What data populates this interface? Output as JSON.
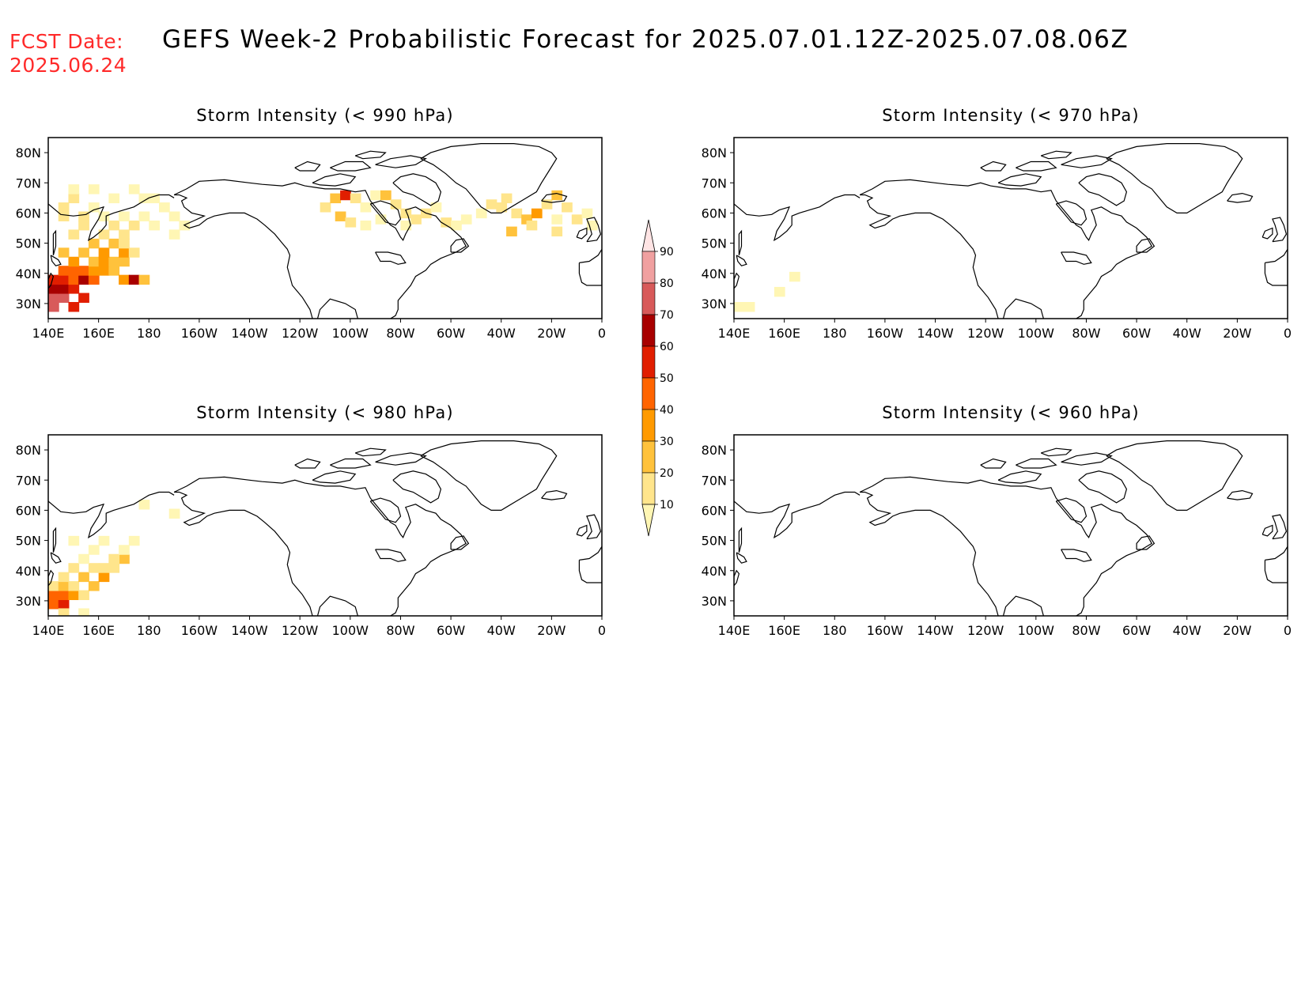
{
  "header": {
    "fcst_label": "FCST Date:",
    "fcst_date": "2025.06.24",
    "title": "GEFS Week-2 Probabilistic Forecast for 2025.07.01.12Z-2025.07.08.06Z"
  },
  "axes": {
    "lat_ticks": [
      "80N",
      "70N",
      "60N",
      "50N",
      "40N",
      "30N"
    ],
    "lon_ticks": [
      "140E",
      "160E",
      "180",
      "160W",
      "140W",
      "120W",
      "100W",
      "80W",
      "60W",
      "40W",
      "20W",
      "0"
    ]
  },
  "panels": [
    {
      "title": "Storm Intensity (< 990 hPa)"
    },
    {
      "title": "Storm Intensity (< 970 hPa)"
    },
    {
      "title": "Storm Intensity (< 980 hPa)"
    },
    {
      "title": "Storm Intensity (< 960 hPa)"
    }
  ],
  "colorbar": {
    "levels": [
      "10",
      "20",
      "30",
      "40",
      "50",
      "60",
      "70",
      "80",
      "90"
    ],
    "colors": [
      "#fff6b4",
      "#ffe58c",
      "#ffc23c",
      "#ff9a00",
      "#ff6400",
      "#e11e00",
      "#a80000",
      "#d85a5a",
      "#f0a0a0",
      "#ffe4e4"
    ]
  },
  "chart_data": {
    "type": "heatmap",
    "variable": "probability (%)",
    "lon_range": [
      140,
      360
    ],
    "lat_range": [
      25,
      85
    ],
    "panels": [
      {
        "threshold_hPa": 990,
        "cells": [
          [
            142,
            29,
            80
          ],
          [
            142,
            32,
            80
          ],
          [
            146,
            32,
            80
          ],
          [
            150,
            29,
            60
          ],
          [
            142,
            35,
            70
          ],
          [
            146,
            35,
            70
          ],
          [
            150,
            35,
            60
          ],
          [
            154,
            32,
            60
          ],
          [
            142,
            38,
            60
          ],
          [
            146,
            38,
            60
          ],
          [
            150,
            38,
            50
          ],
          [
            154,
            38,
            70
          ],
          [
            158,
            38,
            50
          ],
          [
            146,
            41,
            50
          ],
          [
            150,
            41,
            50
          ],
          [
            154,
            41,
            50
          ],
          [
            158,
            41,
            40
          ],
          [
            162,
            41,
            40
          ],
          [
            166,
            41,
            30
          ],
          [
            170,
            38,
            40
          ],
          [
            174,
            38,
            70
          ],
          [
            178,
            38,
            30
          ],
          [
            150,
            44,
            40
          ],
          [
            158,
            44,
            30
          ],
          [
            162,
            44,
            40
          ],
          [
            166,
            44,
            30
          ],
          [
            170,
            44,
            30
          ],
          [
            146,
            47,
            30
          ],
          [
            154,
            47,
            30
          ],
          [
            162,
            47,
            40
          ],
          [
            170,
            47,
            40
          ],
          [
            174,
            47,
            20
          ],
          [
            158,
            50,
            30
          ],
          [
            166,
            50,
            30
          ],
          [
            170,
            50,
            20
          ],
          [
            150,
            53,
            20
          ],
          [
            162,
            53,
            20
          ],
          [
            170,
            53,
            20
          ],
          [
            154,
            56,
            20
          ],
          [
            166,
            56,
            20
          ],
          [
            174,
            56,
            20
          ],
          [
            182,
            56,
            10
          ],
          [
            190,
            53,
            10
          ],
          [
            146,
            59,
            20
          ],
          [
            154,
            59,
            20
          ],
          [
            162,
            59,
            10
          ],
          [
            170,
            59,
            10
          ],
          [
            178,
            59,
            10
          ],
          [
            146,
            62,
            20
          ],
          [
            150,
            65,
            20
          ],
          [
            158,
            62,
            10
          ],
          [
            166,
            65,
            10
          ],
          [
            178,
            65,
            10
          ],
          [
            186,
            62,
            10
          ],
          [
            190,
            59,
            10
          ],
          [
            194,
            56,
            10
          ],
          [
            150,
            68,
            10
          ],
          [
            158,
            68,
            10
          ],
          [
            174,
            68,
            10
          ],
          [
            182,
            65,
            10
          ],
          [
            250,
            62,
            20
          ],
          [
            254,
            65,
            30
          ],
          [
            258,
            66,
            60
          ],
          [
            262,
            65,
            20
          ],
          [
            266,
            62,
            10
          ],
          [
            256,
            59,
            30
          ],
          [
            260,
            57,
            20
          ],
          [
            270,
            66,
            10
          ],
          [
            274,
            66,
            30
          ],
          [
            278,
            63,
            20
          ],
          [
            282,
            60,
            20
          ],
          [
            286,
            58,
            20
          ],
          [
            290,
            60,
            20
          ],
          [
            294,
            62,
            10
          ],
          [
            298,
            57,
            20
          ],
          [
            302,
            56,
            10
          ],
          [
            306,
            58,
            10
          ],
          [
            272,
            58,
            10
          ],
          [
            266,
            56,
            10
          ],
          [
            282,
            56,
            10
          ],
          [
            312,
            60,
            10
          ],
          [
            316,
            63,
            20
          ],
          [
            320,
            62,
            20
          ],
          [
            322,
            65,
            20
          ],
          [
            326,
            60,
            20
          ],
          [
            330,
            58,
            30
          ],
          [
            334,
            60,
            40
          ],
          [
            338,
            63,
            20
          ],
          [
            342,
            66,
            30
          ],
          [
            346,
            62,
            20
          ],
          [
            350,
            58,
            20
          ],
          [
            354,
            60,
            10
          ],
          [
            356,
            56,
            10
          ],
          [
            324,
            54,
            30
          ],
          [
            332,
            56,
            20
          ],
          [
            342,
            54,
            20
          ],
          [
            342,
            58,
            10
          ]
        ]
      },
      {
        "threshold_hPa": 970,
        "cells": [
          [
            142,
            29,
            10
          ],
          [
            146,
            29,
            10
          ],
          [
            158,
            34,
            10
          ],
          [
            164,
            39,
            10
          ]
        ]
      },
      {
        "threshold_hPa": 980,
        "cells": [
          [
            142,
            29,
            50
          ],
          [
            146,
            29,
            60
          ],
          [
            142,
            32,
            50
          ],
          [
            146,
            32,
            50
          ],
          [
            150,
            32,
            40
          ],
          [
            142,
            35,
            20
          ],
          [
            146,
            35,
            30
          ],
          [
            154,
            32,
            20
          ],
          [
            150,
            35,
            20
          ],
          [
            158,
            35,
            30
          ],
          [
            154,
            38,
            30
          ],
          [
            162,
            38,
            40
          ],
          [
            158,
            41,
            20
          ],
          [
            146,
            38,
            20
          ],
          [
            150,
            41,
            20
          ],
          [
            162,
            41,
            20
          ],
          [
            166,
            41,
            20
          ],
          [
            170,
            44,
            30
          ],
          [
            166,
            44,
            20
          ],
          [
            154,
            44,
            10
          ],
          [
            158,
            47,
            10
          ],
          [
            170,
            47,
            10
          ],
          [
            174,
            50,
            10
          ],
          [
            150,
            50,
            10
          ],
          [
            162,
            50,
            10
          ],
          [
            178,
            62,
            10
          ],
          [
            190,
            59,
            10
          ],
          [
            146,
            26,
            20
          ],
          [
            154,
            26,
            10
          ]
        ]
      },
      {
        "threshold_hPa": 960,
        "cells": []
      }
    ]
  }
}
